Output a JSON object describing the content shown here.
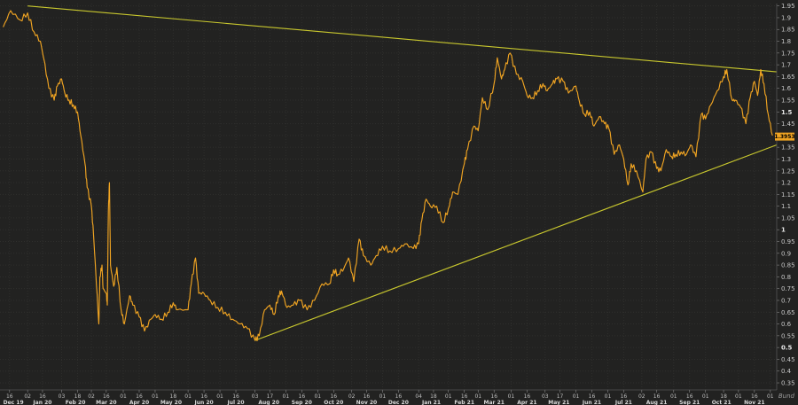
{
  "chart_data": {
    "type": "line",
    "title": "",
    "xlabel": "",
    "ylabel": "",
    "x_start": "2019-12-10",
    "x_end": "2021-12-03",
    "ylim": [
      0.32,
      1.96
    ],
    "y_ticks": [
      0.35,
      0.4,
      0.45,
      0.5,
      0.55,
      0.6,
      0.65,
      0.7,
      0.75,
      0.8,
      0.85,
      0.9,
      0.95,
      1,
      1.05,
      1.1,
      1.15,
      1.2,
      1.25,
      1.3,
      1.35,
      1.4,
      1.45,
      1.5,
      1.55,
      1.6,
      1.65,
      1.7,
      1.75,
      1.8,
      1.85,
      1.9,
      1.95
    ],
    "y_tick_labels": [
      "0.35",
      "0.4",
      "0.45",
      "0.5",
      "0.55",
      "0.6",
      "0.65",
      "0.7",
      "0.75",
      "0.8",
      "0.85",
      "0.9",
      "0.95",
      "1",
      "1.05",
      "1.1",
      "1.15",
      "1.2",
      "1.25",
      "1.3",
      "1.35",
      "1.4",
      "1.45",
      "1.5",
      "1.55",
      "1.6",
      "1.65",
      "1.7",
      "1.75",
      "1.8",
      "1.85",
      "1.9",
      "1.95"
    ],
    "y_bold_ticks": [
      "0.5",
      "1",
      "1.5"
    ],
    "x_day_ticks": [
      {
        "date": "2019-12-16",
        "label": "16"
      },
      {
        "date": "2020-01-02",
        "label": "02"
      },
      {
        "date": "2020-01-16",
        "label": "16"
      },
      {
        "date": "2020-02-03",
        "label": "03"
      },
      {
        "date": "2020-02-18",
        "label": "18"
      },
      {
        "date": "2020-03-02",
        "label": "02"
      },
      {
        "date": "2020-03-16",
        "label": "16"
      },
      {
        "date": "2020-04-01",
        "label": "01"
      },
      {
        "date": "2020-04-16",
        "label": "16"
      },
      {
        "date": "2020-05-01",
        "label": "01"
      },
      {
        "date": "2020-05-18",
        "label": "18"
      },
      {
        "date": "2020-06-01",
        "label": "01"
      },
      {
        "date": "2020-06-16",
        "label": "16"
      },
      {
        "date": "2020-07-01",
        "label": "01"
      },
      {
        "date": "2020-07-16",
        "label": "16"
      },
      {
        "date": "2020-08-03",
        "label": "03"
      },
      {
        "date": "2020-08-17",
        "label": "17"
      },
      {
        "date": "2020-09-01",
        "label": "01"
      },
      {
        "date": "2020-09-16",
        "label": "16"
      },
      {
        "date": "2020-10-01",
        "label": "01"
      },
      {
        "date": "2020-10-16",
        "label": "16"
      },
      {
        "date": "2020-11-02",
        "label": "02"
      },
      {
        "date": "2020-11-16",
        "label": "16"
      },
      {
        "date": "2020-12-01",
        "label": "01"
      },
      {
        "date": "2020-12-16",
        "label": "16"
      },
      {
        "date": "2021-01-04",
        "label": "04"
      },
      {
        "date": "2021-01-18",
        "label": "18"
      },
      {
        "date": "2021-02-01",
        "label": "01"
      },
      {
        "date": "2021-02-16",
        "label": "16"
      },
      {
        "date": "2021-03-01",
        "label": "01"
      },
      {
        "date": "2021-03-16",
        "label": "16"
      },
      {
        "date": "2021-04-01",
        "label": "01"
      },
      {
        "date": "2021-04-16",
        "label": "16"
      },
      {
        "date": "2021-05-03",
        "label": "03"
      },
      {
        "date": "2021-05-17",
        "label": "17"
      },
      {
        "date": "2021-06-01",
        "label": "01"
      },
      {
        "date": "2021-06-16",
        "label": "16"
      },
      {
        "date": "2021-07-01",
        "label": "01"
      },
      {
        "date": "2021-07-16",
        "label": "16"
      },
      {
        "date": "2021-08-02",
        "label": "02"
      },
      {
        "date": "2021-08-16",
        "label": "16"
      },
      {
        "date": "2021-09-01",
        "label": "01"
      },
      {
        "date": "2021-09-16",
        "label": "16"
      },
      {
        "date": "2021-10-01",
        "label": "01"
      },
      {
        "date": "2021-10-18",
        "label": "18"
      },
      {
        "date": "2021-11-01",
        "label": "01"
      },
      {
        "date": "2021-11-16",
        "label": "16"
      },
      {
        "date": "2021-12-01",
        "label": "01"
      }
    ],
    "x_month_labels": [
      {
        "date": "2019-12-10",
        "label": "Dec 19"
      },
      {
        "date": "2020-01-16",
        "label": "Jan 20"
      },
      {
        "date": "2020-02-16",
        "label": "Feb 20"
      },
      {
        "date": "2020-03-16",
        "label": "Mar 20"
      },
      {
        "date": "2020-04-16",
        "label": "Apr 20"
      },
      {
        "date": "2020-05-16",
        "label": "May 20"
      },
      {
        "date": "2020-06-16",
        "label": "Jun 20"
      },
      {
        "date": "2020-07-16",
        "label": "Jul 20"
      },
      {
        "date": "2020-08-16",
        "label": "Aug 20"
      },
      {
        "date": "2020-09-16",
        "label": "Sep 20"
      },
      {
        "date": "2020-10-16",
        "label": "Oct 20"
      },
      {
        "date": "2020-11-16",
        "label": "Nov 20"
      },
      {
        "date": "2020-12-16",
        "label": "Dec 20"
      },
      {
        "date": "2021-01-16",
        "label": "Jan 21"
      },
      {
        "date": "2021-02-16",
        "label": "Feb 21"
      },
      {
        "date": "2021-03-16",
        "label": "Mar 21"
      },
      {
        "date": "2021-04-16",
        "label": "Apr 21"
      },
      {
        "date": "2021-05-16",
        "label": "May 21"
      },
      {
        "date": "2021-06-16",
        "label": "Jun 21"
      },
      {
        "date": "2021-07-16",
        "label": "Jul 21"
      },
      {
        "date": "2021-08-16",
        "label": "Aug 21"
      },
      {
        "date": "2021-09-16",
        "label": "Sep 21"
      },
      {
        "date": "2021-10-16",
        "label": "Oct 21"
      },
      {
        "date": "2021-11-16",
        "label": "Nov 21"
      }
    ],
    "grid": true,
    "series": [
      {
        "color": "#f0a422",
        "points": [
          [
            "2019-12-10",
            1.86
          ],
          [
            "2019-12-17",
            1.93
          ],
          [
            "2019-12-26",
            1.89
          ],
          [
            "2020-01-02",
            1.92
          ],
          [
            "2020-01-08",
            1.84
          ],
          [
            "2020-01-14",
            1.8
          ],
          [
            "2020-01-17",
            1.73
          ],
          [
            "2020-01-22",
            1.6
          ],
          [
            "2020-01-27",
            1.55
          ],
          [
            "2020-01-30",
            1.61
          ],
          [
            "2020-02-03",
            1.64
          ],
          [
            "2020-02-06",
            1.58
          ],
          [
            "2020-02-10",
            1.55
          ],
          [
            "2020-02-14",
            1.53
          ],
          [
            "2020-02-18",
            1.5
          ],
          [
            "2020-02-21",
            1.4
          ],
          [
            "2020-02-25",
            1.28
          ],
          [
            "2020-02-27",
            1.18
          ],
          [
            "2020-03-02",
            1.1
          ],
          [
            "2020-03-04",
            0.98
          ],
          [
            "2020-03-06",
            0.83
          ],
          [
            "2020-03-09",
            0.6
          ],
          [
            "2020-03-10",
            0.8
          ],
          [
            "2020-03-12",
            0.85
          ],
          [
            "2020-03-13",
            0.75
          ],
          [
            "2020-03-16",
            0.73
          ],
          [
            "2020-03-17",
            0.68
          ],
          [
            "2020-03-18",
            1.08
          ],
          [
            "2020-03-19",
            1.2
          ],
          [
            "2020-03-20",
            0.85
          ],
          [
            "2020-03-23",
            0.76
          ],
          [
            "2020-03-26",
            0.84
          ],
          [
            "2020-03-30",
            0.66
          ],
          [
            "2020-04-02",
            0.6
          ],
          [
            "2020-04-07",
            0.72
          ],
          [
            "2020-04-10",
            0.68
          ],
          [
            "2020-04-16",
            0.63
          ],
          [
            "2020-04-21",
            0.57
          ],
          [
            "2020-04-27",
            0.62
          ],
          [
            "2020-05-01",
            0.64
          ],
          [
            "2020-05-07",
            0.62
          ],
          [
            "2020-05-13",
            0.65
          ],
          [
            "2020-05-18",
            0.69
          ],
          [
            "2020-05-22",
            0.66
          ],
          [
            "2020-06-01",
            0.66
          ],
          [
            "2020-06-04",
            0.77
          ],
          [
            "2020-06-08",
            0.88
          ],
          [
            "2020-06-11",
            0.73
          ],
          [
            "2020-06-16",
            0.73
          ],
          [
            "2020-06-22",
            0.7
          ],
          [
            "2020-06-29",
            0.67
          ],
          [
            "2020-07-06",
            0.65
          ],
          [
            "2020-07-13",
            0.62
          ],
          [
            "2020-07-20",
            0.6
          ],
          [
            "2020-07-27",
            0.58
          ],
          [
            "2020-08-03",
            0.53
          ],
          [
            "2020-08-07",
            0.55
          ],
          [
            "2020-08-12",
            0.66
          ],
          [
            "2020-08-17",
            0.68
          ],
          [
            "2020-08-21",
            0.64
          ],
          [
            "2020-08-25",
            0.72
          ],
          [
            "2020-08-28",
            0.74
          ],
          [
            "2020-09-02",
            0.67
          ],
          [
            "2020-09-08",
            0.68
          ],
          [
            "2020-09-14",
            0.7
          ],
          [
            "2020-09-21",
            0.66
          ],
          [
            "2020-09-28",
            0.7
          ],
          [
            "2020-10-05",
            0.77
          ],
          [
            "2020-10-12",
            0.77
          ],
          [
            "2020-10-16",
            0.83
          ],
          [
            "2020-10-20",
            0.81
          ],
          [
            "2020-10-26",
            0.84
          ],
          [
            "2020-10-30",
            0.88
          ],
          [
            "2020-11-04",
            0.78
          ],
          [
            "2020-11-09",
            0.96
          ],
          [
            "2020-11-13",
            0.89
          ],
          [
            "2020-11-20",
            0.85
          ],
          [
            "2020-11-25",
            0.89
          ],
          [
            "2020-12-01",
            0.93
          ],
          [
            "2020-12-08",
            0.91
          ],
          [
            "2020-12-16",
            0.92
          ],
          [
            "2020-12-22",
            0.94
          ],
          [
            "2020-12-30",
            0.92
          ],
          [
            "2021-01-04",
            0.94
          ],
          [
            "2021-01-07",
            1.04
          ],
          [
            "2021-01-11",
            1.13
          ],
          [
            "2021-01-15",
            1.1
          ],
          [
            "2021-01-21",
            1.1
          ],
          [
            "2021-01-27",
            1.03
          ],
          [
            "2021-02-01",
            1.09
          ],
          [
            "2021-02-05",
            1.16
          ],
          [
            "2021-02-10",
            1.15
          ],
          [
            "2021-02-16",
            1.28
          ],
          [
            "2021-02-19",
            1.34
          ],
          [
            "2021-02-25",
            1.44
          ],
          [
            "2021-03-01",
            1.42
          ],
          [
            "2021-03-05",
            1.56
          ],
          [
            "2021-03-10",
            1.51
          ],
          [
            "2021-03-16",
            1.62
          ],
          [
            "2021-03-19",
            1.73
          ],
          [
            "2021-03-23",
            1.64
          ],
          [
            "2021-03-26",
            1.68
          ],
          [
            "2021-03-31",
            1.75
          ],
          [
            "2021-04-06",
            1.66
          ],
          [
            "2021-04-12",
            1.63
          ],
          [
            "2021-04-16",
            1.57
          ],
          [
            "2021-04-21",
            1.56
          ],
          [
            "2021-04-26",
            1.59
          ],
          [
            "2021-05-01",
            1.62
          ],
          [
            "2021-05-05",
            1.59
          ],
          [
            "2021-05-10",
            1.62
          ],
          [
            "2021-05-14",
            1.64
          ],
          [
            "2021-05-20",
            1.63
          ],
          [
            "2021-05-25",
            1.58
          ],
          [
            "2021-06-01",
            1.61
          ],
          [
            "2021-06-04",
            1.55
          ],
          [
            "2021-06-09",
            1.49
          ],
          [
            "2021-06-14",
            1.5
          ],
          [
            "2021-06-18",
            1.44
          ],
          [
            "2021-06-23",
            1.48
          ],
          [
            "2021-06-28",
            1.45
          ],
          [
            "2021-07-02",
            1.43
          ],
          [
            "2021-07-07",
            1.32
          ],
          [
            "2021-07-12",
            1.36
          ],
          [
            "2021-07-16",
            1.3
          ],
          [
            "2021-07-20",
            1.19
          ],
          [
            "2021-07-23",
            1.28
          ],
          [
            "2021-07-28",
            1.25
          ],
          [
            "2021-08-03",
            1.16
          ],
          [
            "2021-08-06",
            1.3
          ],
          [
            "2021-08-11",
            1.33
          ],
          [
            "2021-08-16",
            1.26
          ],
          [
            "2021-08-20",
            1.25
          ],
          [
            "2021-08-25",
            1.34
          ],
          [
            "2021-08-30",
            1.31
          ],
          [
            "2021-09-03",
            1.32
          ],
          [
            "2021-09-08",
            1.33
          ],
          [
            "2021-09-13",
            1.32
          ],
          [
            "2021-09-17",
            1.36
          ],
          [
            "2021-09-22",
            1.31
          ],
          [
            "2021-09-27",
            1.49
          ],
          [
            "2021-10-01",
            1.47
          ],
          [
            "2021-10-06",
            1.53
          ],
          [
            "2021-10-12",
            1.59
          ],
          [
            "2021-10-18",
            1.65
          ],
          [
            "2021-10-21",
            1.68
          ],
          [
            "2021-10-26",
            1.55
          ],
          [
            "2021-10-29",
            1.55
          ],
          [
            "2021-11-03",
            1.52
          ],
          [
            "2021-11-08",
            1.45
          ],
          [
            "2021-11-12",
            1.56
          ],
          [
            "2021-11-16",
            1.63
          ],
          [
            "2021-11-19",
            1.57
          ],
          [
            "2021-11-22",
            1.68
          ],
          [
            "2021-11-25",
            1.62
          ],
          [
            "2021-11-29",
            1.49
          ],
          [
            "2021-12-03",
            1.4
          ]
        ]
      }
    ],
    "trendlines": [
      {
        "color": "#c9c82e",
        "from": [
          "2020-01-02",
          1.95
        ],
        "to": [
          "2021-12-07",
          1.67
        ]
      },
      {
        "color": "#c9c82e",
        "from": [
          "2020-08-03",
          0.53
        ],
        "to": [
          "2021-12-07",
          1.36
        ]
      }
    ],
    "last_value_label": "1.3953",
    "last_value": 1.3953,
    "watermark": "Bund"
  }
}
